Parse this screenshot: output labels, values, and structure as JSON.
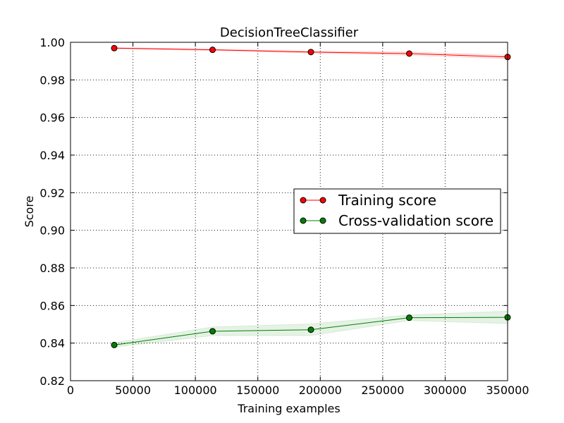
{
  "chart_data": {
    "type": "line",
    "title": "DecisionTreeClassifier",
    "xlabel": "Training examples",
    "ylabel": "Score",
    "xlim": [
      0,
      350000
    ],
    "ylim": [
      0.82,
      1.0
    ],
    "x_ticks": [
      0,
      50000,
      100000,
      150000,
      200000,
      250000,
      300000,
      350000
    ],
    "x_tick_labels": [
      "0",
      "50000",
      "100000",
      "150000",
      "200000",
      "250000",
      "300000",
      "350000"
    ],
    "y_ticks": [
      0.82,
      0.84,
      0.86,
      0.88,
      0.9,
      0.92,
      0.94,
      0.96,
      0.98,
      1.0
    ],
    "y_tick_labels": [
      "0.82",
      "0.84",
      "0.86",
      "0.88",
      "0.90",
      "0.92",
      "0.94",
      "0.96",
      "0.98",
      "1.00"
    ],
    "grid": true,
    "legend_position": "center-right",
    "x": [
      35000,
      113750,
      192500,
      271250,
      350000
    ],
    "series": [
      {
        "name": "Training score",
        "color": "#ff0000",
        "values": [
          0.9969,
          0.996,
          0.9948,
          0.994,
          0.9922
        ],
        "band_low": [
          0.9966,
          0.9956,
          0.9943,
          0.9931,
          0.9912
        ],
        "band_high": [
          0.9972,
          0.9964,
          0.9953,
          0.9949,
          0.9932
        ]
      },
      {
        "name": "Cross-validation score",
        "color": "#008000",
        "values": [
          0.839,
          0.8463,
          0.8471,
          0.8535,
          0.8537
        ],
        "band_low": [
          0.8378,
          0.844,
          0.844,
          0.852,
          0.8504
        ],
        "band_high": [
          0.8402,
          0.8486,
          0.8502,
          0.855,
          0.857
        ]
      }
    ]
  }
}
